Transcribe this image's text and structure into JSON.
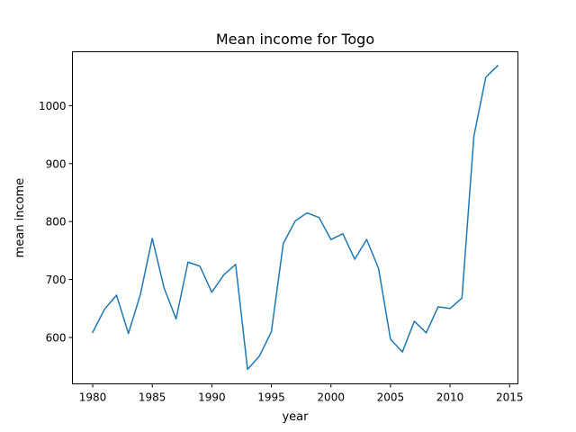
{
  "chart_data": {
    "type": "line",
    "title": "Mean income for Togo",
    "xlabel": "year",
    "ylabel": "mean income",
    "xlim": [
      1978.3,
      2015.7
    ],
    "ylim": [
      520,
      1093
    ],
    "xticks": [
      1980,
      1985,
      1990,
      1995,
      2000,
      2005,
      2010,
      2015
    ],
    "yticks": [
      600,
      700,
      800,
      900,
      1000
    ],
    "grid": false,
    "series": [
      {
        "color": "#1f77b4",
        "x": [
          1980,
          1981,
          1982,
          1983,
          1984,
          1985,
          1986,
          1987,
          1988,
          1989,
          1990,
          1991,
          1992,
          1993,
          1994,
          1995,
          1996,
          1997,
          1998,
          1999,
          2000,
          2001,
          2002,
          2003,
          2004,
          2005,
          2006,
          2007,
          2008,
          2009,
          2010,
          2011,
          2012,
          2013,
          2014
        ],
        "y": [
          609,
          649,
          673,
          607,
          674,
          771,
          685,
          632,
          730,
          723,
          678,
          708,
          726,
          545,
          568,
          610,
          762,
          801,
          815,
          807,
          769,
          779,
          735,
          769,
          719,
          597,
          575,
          628,
          608,
          653,
          650,
          668,
          947,
          1049,
          1069
        ]
      }
    ]
  }
}
